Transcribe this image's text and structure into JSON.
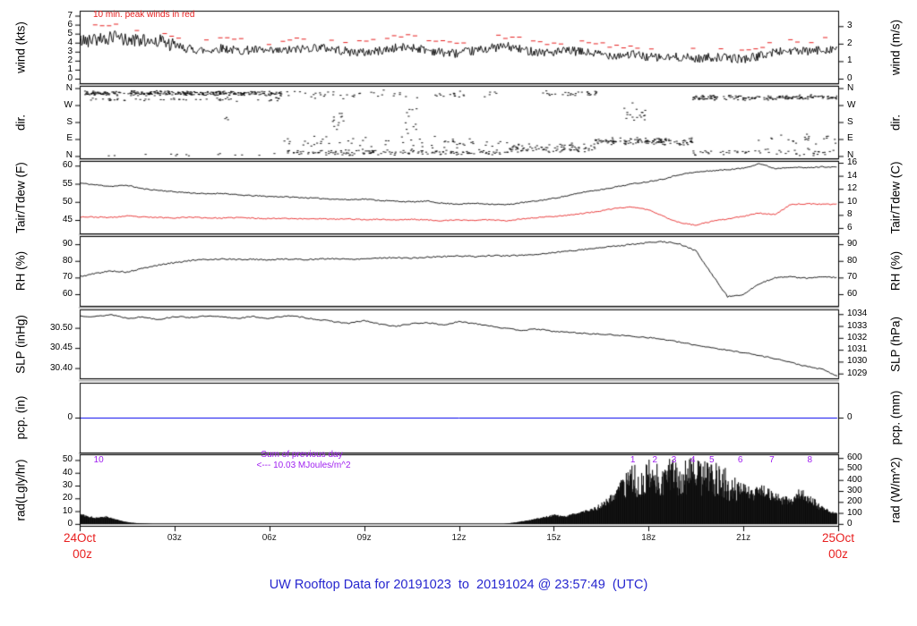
{
  "title": {
    "text": "UW Rooftop Data for 20191023  to  20191024 @ 23:57:49  (UTC)",
    "color": "#2626cf"
  },
  "colors": {
    "trace": "#000000",
    "peak_wind": "#e62020",
    "dewpoint": "#e62020",
    "precip": "#0000ee",
    "annotation_purple": "#a020f0",
    "date_red": "#e82020",
    "separator_gray": "#b4b4b4"
  },
  "x_axis": {
    "hours_span": 24,
    "tick_hours": [
      3,
      6,
      9,
      12,
      15,
      18,
      21
    ],
    "tick_labels": [
      "03z",
      "06z",
      "09z",
      "12z",
      "15z",
      "18z",
      "21z"
    ],
    "start_date": "24Oct",
    "start_hour": "00z",
    "end_date": "25Oct",
    "end_hour": "00z"
  },
  "chart_data": [
    {
      "type": "line",
      "ylabel_left": "wind (kts)",
      "ylabel_right": "wind (m/s)",
      "ylim": [
        -0.5,
        7.55
      ],
      "yticks_left": {
        "labels": [
          "0",
          "1",
          "2",
          "3",
          "4",
          "5",
          "6",
          "7"
        ],
        "pos": [
          0,
          1,
          2,
          3,
          4,
          5,
          6,
          7
        ]
      },
      "yticks_right": {
        "labels": [
          "0",
          "1",
          "2",
          "3"
        ],
        "pos": [
          0,
          1.9438,
          3.8877,
          5.8315
        ]
      },
      "annotation": "10 min. peak winds in red",
      "dt_hours": 0.5,
      "wind_kts": [
        4.2,
        4.4,
        4.6,
        4.3,
        4.1,
        4.3,
        3.6,
        3.3,
        3.1,
        3.4,
        3.1,
        3.2,
        3.0,
        3.1,
        3.3,
        3.5,
        3.3,
        3.0,
        2.9,
        3.1,
        3.4,
        3.5,
        3.2,
        2.9,
        2.8,
        3.1,
        3.4,
        3.6,
        3.2,
        3.0,
        2.9,
        3.1,
        2.9,
        2.7,
        2.6,
        2.7,
        2.4,
        2.3,
        2.4,
        2.2,
        2.4,
        2.3,
        2.2,
        2.5,
        3.0,
        3.1,
        3.0,
        3.2,
        3.4
      ],
      "peak_kts": [
        6.8,
        5.9,
        6.1,
        5.7,
        5.2,
        5.4,
        4.8,
        4.5,
        4.2,
        4.6,
        4.3,
        4.4,
        4.1,
        4.3,
        4.5,
        4.7,
        4.4,
        4.1,
        4.0,
        4.3,
        4.6,
        4.7,
        4.4,
        4.0,
        3.9,
        4.2,
        4.6,
        4.8,
        4.3,
        4.1,
        4.0,
        4.2,
        4.0,
        3.8,
        3.6,
        3.7,
        3.4,
        3.2,
        3.4,
        3.1,
        3.3,
        3.2,
        3.1,
        3.5,
        4.1,
        4.2,
        4.1,
        4.4,
        4.6
      ]
    },
    {
      "type": "scatter",
      "ylabel_left": "dir.",
      "ylabel_right": "dir.",
      "ylim": [
        -12,
        372
      ],
      "yticks_left": {
        "labels": [
          "N",
          "W",
          "S",
          "E",
          "N"
        ],
        "pos": [
          360,
          270,
          180,
          90,
          0
        ]
      },
      "yticks_right": {
        "labels": [
          "N",
          "W",
          "S",
          "E",
          "N"
        ],
        "pos": [
          360,
          270,
          180,
          90,
          0
        ]
      },
      "clusters": [
        {
          "t0": 0.1,
          "t1": 6.4,
          "dir": 335,
          "spread": 14,
          "n": 300
        },
        {
          "t0": 0.1,
          "t1": 6.4,
          "dir": 302,
          "spread": 12,
          "n": 50
        },
        {
          "t0": 0.3,
          "t1": 6.2,
          "dir": 10,
          "spread": 12,
          "n": 14
        },
        {
          "t0": 4.6,
          "t1": 4.8,
          "dir": 200,
          "spread": 15,
          "n": 3
        },
        {
          "t0": 6.4,
          "t1": 13.6,
          "dir": 22,
          "spread": 18,
          "n": 150
        },
        {
          "t0": 6.4,
          "t1": 13.6,
          "dir": 70,
          "spread": 45,
          "n": 60
        },
        {
          "t0": 6.4,
          "t1": 13.2,
          "dir": 330,
          "spread": 28,
          "n": 55
        },
        {
          "t0": 8.0,
          "t1": 8.4,
          "dir": 180,
          "spread": 110,
          "n": 12
        },
        {
          "t0": 10.3,
          "t1": 10.7,
          "dir": 180,
          "spread": 110,
          "n": 12
        },
        {
          "t0": 13.6,
          "t1": 16.3,
          "dir": 45,
          "spread": 28,
          "n": 90
        },
        {
          "t0": 14.6,
          "t1": 16.4,
          "dir": 335,
          "spread": 16,
          "n": 30
        },
        {
          "t0": 16.3,
          "t1": 19.4,
          "dir": 80,
          "spread": 22,
          "n": 130
        },
        {
          "t0": 17.2,
          "t1": 17.9,
          "dir": 230,
          "spread": 80,
          "n": 18
        },
        {
          "t0": 19.4,
          "t1": 24.0,
          "dir": 312,
          "spread": 16,
          "n": 170
        },
        {
          "t0": 19.4,
          "t1": 24.0,
          "dir": 25,
          "spread": 22,
          "n": 55
        },
        {
          "t0": 21.3,
          "t1": 24.0,
          "dir": 95,
          "spread": 35,
          "n": 22
        }
      ]
    },
    {
      "type": "line",
      "ylabel_left": "Tair/Tdew (F)",
      "ylabel_right": "Tair/Tdew (C)",
      "ylim": [
        41.3,
        61.3
      ],
      "yticks_left": {
        "labels": [
          "45",
          "50",
          "55",
          "60"
        ],
        "pos": [
          45,
          50,
          55,
          60
        ]
      },
      "yticks_right": {
        "labels": [
          "6",
          "8",
          "10",
          "12",
          "14",
          "16"
        ],
        "pos": [
          42.8,
          46.4,
          50,
          53.6,
          57.2,
          60.8
        ]
      },
      "dt_hours": 0.5,
      "tair_f": [
        55.2,
        54.7,
        54.3,
        54.6,
        53.6,
        53.2,
        52.8,
        52.5,
        52.2,
        52.4,
        51.9,
        51.7,
        51.5,
        51.4,
        51.2,
        51.0,
        50.8,
        50.6,
        50.8,
        50.4,
        50.2,
        50.0,
        50.2,
        49.6,
        49.4,
        49.6,
        49.4,
        49.2,
        49.8,
        50.3,
        51.0,
        51.8,
        52.8,
        53.4,
        54.2,
        55.0,
        55.6,
        56.4,
        57.6,
        58.2,
        58.6,
        58.9,
        59.3,
        60.6,
        59.2,
        59.6,
        59.4,
        59.7,
        59.6
      ],
      "tdew_f": [
        45.9,
        45.8,
        45.7,
        46.1,
        45.8,
        45.7,
        45.6,
        45.8,
        45.6,
        45.5,
        45.7,
        45.5,
        45.4,
        45.5,
        45.3,
        45.4,
        45.2,
        45.3,
        45.1,
        45.2,
        45.0,
        45.2,
        45.0,
        44.8,
        45.0,
        44.9,
        45.1,
        44.8,
        45.3,
        45.7,
        46.0,
        46.4,
        46.9,
        47.5,
        48.3,
        48.6,
        47.8,
        45.9,
        44.2,
        43.6,
        44.6,
        45.3,
        46.0,
        46.9,
        46.5,
        49.3,
        49.5,
        49.3,
        49.4
      ]
    },
    {
      "type": "line",
      "ylabel_left": "RH (%)",
      "ylabel_right": "RH (%)",
      "ylim": [
        53,
        94.9
      ],
      "yticks_left": {
        "labels": [
          "60",
          "70",
          "80",
          "90"
        ],
        "pos": [
          60,
          70,
          80,
          90
        ]
      },
      "yticks_right": {
        "labels": [
          "60",
          "70",
          "80",
          "90"
        ],
        "pos": [
          60,
          70,
          80,
          90
        ]
      },
      "dt_hours": 0.5,
      "rh_pct": [
        70.5,
        72.5,
        74.0,
        73.2,
        75.5,
        77.5,
        79.0,
        80.2,
        80.8,
        81.2,
        80.8,
        81.0,
        80.6,
        81.2,
        80.8,
        81.0,
        81.4,
        81.0,
        81.3,
        81.8,
        82.0,
        81.6,
        82.2,
        82.6,
        83.0,
        82.6,
        83.2,
        83.0,
        83.4,
        84.0,
        85.0,
        86.0,
        87.0,
        88.0,
        89.0,
        90.0,
        91.0,
        91.5,
        90.0,
        86.0,
        72.0,
        58.5,
        60.0,
        66.0,
        70.0,
        70.5,
        69.5,
        70.5,
        70.0
      ]
    },
    {
      "type": "line",
      "ylabel_left": "SLP (inHg)",
      "ylabel_right": "SLP (hPa)",
      "ylim": [
        30.3747,
        30.5458
      ],
      "yticks_left": {
        "labels": [
          "30.40",
          "30.45",
          "30.50"
        ],
        "pos": [
          30.4,
          30.45,
          30.5
        ]
      },
      "yticks_right": {
        "labels": [
          "1029",
          "1030",
          "1031",
          "1032",
          "1033",
          "1034"
        ],
        "pos": [
          30.3865,
          30.416,
          30.4455,
          30.4751,
          30.5046,
          30.5341
        ]
      },
      "dt_hours": 0.5,
      "slp_inhg": [
        30.53,
        30.528,
        30.533,
        30.524,
        30.527,
        30.521,
        30.528,
        30.526,
        30.529,
        30.527,
        30.524,
        30.528,
        30.523,
        30.53,
        30.527,
        30.521,
        30.516,
        30.511,
        30.518,
        30.509,
        30.504,
        30.51,
        30.513,
        30.507,
        30.515,
        30.511,
        30.505,
        30.498,
        30.494,
        30.497,
        30.491,
        30.489,
        30.486,
        30.484,
        30.482,
        30.479,
        30.476,
        30.471,
        30.464,
        30.457,
        30.451,
        30.444,
        30.439,
        30.431,
        30.424,
        30.414,
        30.404,
        30.397,
        30.379
      ]
    },
    {
      "type": "line",
      "ylabel_left": "pcp. (in)",
      "ylabel_right": "pcp. (mm)",
      "ylim": [
        -1,
        1
      ],
      "yticks_left": {
        "labels": [
          "0"
        ],
        "pos": [
          0
        ]
      },
      "yticks_right": {
        "labels": [
          "0"
        ],
        "pos": [
          0
        ]
      },
      "pcp_value": 0
    },
    {
      "type": "area",
      "ylabel_left": "rad(Lgly/hr)",
      "ylabel_right": "rad (W/m^2)",
      "ylim": [
        -1.5,
        54.5
      ],
      "yticks_left": {
        "labels": [
          "0",
          "10",
          "20",
          "30",
          "40",
          "50"
        ],
        "pos": [
          0,
          10,
          20,
          30,
          40,
          50
        ]
      },
      "yticks_right": {
        "labels": [
          "0",
          "100",
          "200",
          "300",
          "400",
          "500",
          "600"
        ],
        "pos": [
          0,
          8.599,
          17.197,
          25.796,
          34.394,
          42.993,
          51.591
        ]
      },
      "annotation_line1": "Sum of previous day",
      "annotation_line2": "<--- 10.03 MJoules/m^2",
      "mj_markers": {
        "labels": [
          "10",
          "1",
          "2",
          "3",
          "4",
          "5",
          "6",
          "7",
          "8"
        ],
        "hours": [
          0.6,
          17.5,
          18.2,
          18.8,
          19.4,
          20.0,
          20.9,
          21.9,
          23.1
        ]
      },
      "env_t_hours": [
        0,
        0.2,
        0.5,
        0.8,
        1.0,
        1.3,
        1.6,
        2.0,
        2.3,
        13.4,
        13.8,
        14.2,
        14.6,
        15.0,
        15.3,
        15.6,
        16.0,
        16.3,
        16.6,
        16.9,
        17.1,
        17.3,
        17.5,
        17.8,
        18.0,
        18.3,
        18.6,
        18.9,
        19.2,
        19.5,
        19.8,
        20.1,
        20.4,
        20.7,
        21.0,
        21.3,
        21.6,
        21.9,
        22.2,
        22.5,
        22.8,
        23.1,
        23.4,
        23.6,
        23.8,
        24
      ],
      "env_wm2": [
        95,
        75,
        60,
        70,
        55,
        30,
        12,
        4,
        0,
        0,
        15,
        35,
        60,
        85,
        70,
        95,
        120,
        150,
        210,
        280,
        380,
        450,
        520,
        480,
        560,
        520,
        580,
        540,
        590,
        560,
        580,
        540,
        500,
        420,
        350,
        300,
        360,
        280,
        250,
        230,
        320,
        250,
        180,
        140,
        110,
        100
      ]
    }
  ]
}
